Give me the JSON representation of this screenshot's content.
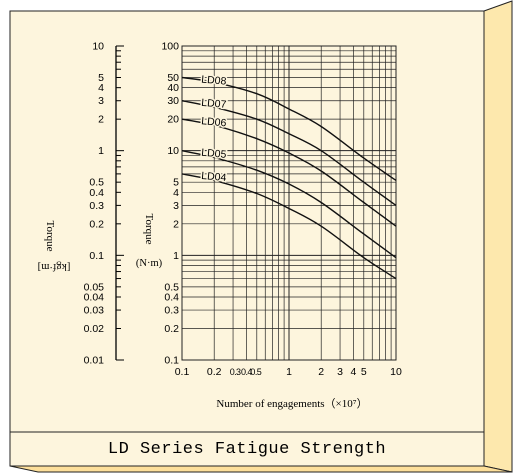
{
  "caption": "LD Series Fatigue Strength",
  "colors": {
    "panel_face": "#fdf5dd",
    "panel_side": "#fde8ad",
    "panel_bottom": "#fddf9a",
    "border": "#222222",
    "curve": "#111111",
    "grid": "#222222"
  },
  "chart_data": {
    "type": "line",
    "xscale": "log",
    "yscale": "log",
    "xlabel": "Number of engagements（×10⁷）",
    "ylabel": "Torque",
    "yunit": "(N·m)",
    "xlim": [
      0.1,
      10
    ],
    "ylim": [
      0.1,
      100
    ],
    "grid": true,
    "x_tick_labels": [
      {
        "value": 0.1,
        "label": "0.1"
      },
      {
        "value": 0.2,
        "label": "0.2"
      },
      {
        "value": 0.3,
        "label": "0.3"
      },
      {
        "value": 0.4,
        "label": "0.4"
      },
      {
        "value": 0.5,
        "label": "0.5"
      },
      {
        "value": 1,
        "label": "1"
      },
      {
        "value": 2,
        "label": "2"
      },
      {
        "value": 3,
        "label": "3"
      },
      {
        "value": 4,
        "label": "4"
      },
      {
        "value": 5,
        "label": "5"
      },
      {
        "value": 10,
        "label": "10"
      }
    ],
    "y_tick_labels": [
      {
        "value": 100,
        "label": "100"
      },
      {
        "value": 50,
        "label": "50"
      },
      {
        "value": 40,
        "label": "40"
      },
      {
        "value": 30,
        "label": "30"
      },
      {
        "value": 20,
        "label": "20"
      },
      {
        "value": 10,
        "label": "10"
      },
      {
        "value": 5,
        "label": "5"
      },
      {
        "value": 4,
        "label": "4"
      },
      {
        "value": 3,
        "label": "3"
      },
      {
        "value": 2,
        "label": "2"
      },
      {
        "value": 1,
        "label": "1"
      },
      {
        "value": 0.5,
        "label": "0.5"
      },
      {
        "value": 0.4,
        "label": "0.4"
      },
      {
        "value": 0.3,
        "label": "0.3"
      },
      {
        "value": 0.2,
        "label": "0.2"
      },
      {
        "value": 0.1,
        "label": "0.1"
      }
    ],
    "secondary_axis": {
      "label": "Torque",
      "unit": "[kgf·m]",
      "lim": [
        0.01,
        10
      ],
      "tick_labels": [
        {
          "value": 10,
          "label": "10"
        },
        {
          "value": 5,
          "label": "5"
        },
        {
          "value": 4,
          "label": "4"
        },
        {
          "value": 3,
          "label": "3"
        },
        {
          "value": 2,
          "label": "2"
        },
        {
          "value": 1,
          "label": "1"
        },
        {
          "value": 0.5,
          "label": "0.5"
        },
        {
          "value": 0.4,
          "label": "0.4"
        },
        {
          "value": 0.3,
          "label": "0.3"
        },
        {
          "value": 0.2,
          "label": "0.2"
        },
        {
          "value": 0.1,
          "label": "0.1"
        },
        {
          "value": 0.05,
          "label": "0.05"
        },
        {
          "value": 0.04,
          "label": "0.04"
        },
        {
          "value": 0.03,
          "label": "0.03"
        },
        {
          "value": 0.02,
          "label": "0.02"
        },
        {
          "value": 0.01,
          "label": "0.01"
        }
      ]
    },
    "series": [
      {
        "name": "LD08",
        "points": [
          [
            0.1,
            50
          ],
          [
            0.2,
            45
          ],
          [
            0.5,
            35
          ],
          [
            1,
            25
          ],
          [
            2,
            17
          ],
          [
            5,
            8.5
          ],
          [
            10,
            5.2
          ]
        ]
      },
      {
        "name": "LD07",
        "points": [
          [
            0.1,
            30
          ],
          [
            0.2,
            26
          ],
          [
            0.5,
            20
          ],
          [
            1,
            14.5
          ],
          [
            2,
            10
          ],
          [
            5,
            5
          ],
          [
            10,
            3
          ]
        ]
      },
      {
        "name": "LD06",
        "points": [
          [
            0.1,
            20
          ],
          [
            0.2,
            17.5
          ],
          [
            0.5,
            13
          ],
          [
            1,
            9.5
          ],
          [
            2,
            6.4
          ],
          [
            5,
            3.2
          ],
          [
            10,
            1.9
          ]
        ]
      },
      {
        "name": "LD05",
        "points": [
          [
            0.1,
            10
          ],
          [
            0.2,
            8.6
          ],
          [
            0.5,
            6.5
          ],
          [
            1,
            4.8
          ],
          [
            2,
            3.2
          ],
          [
            5,
            1.6
          ],
          [
            10,
            0.95
          ]
        ]
      },
      {
        "name": "LD04",
        "points": [
          [
            0.1,
            6
          ],
          [
            0.2,
            5.2
          ],
          [
            0.5,
            3.9
          ],
          [
            1,
            2.8
          ],
          [
            2,
            1.9
          ],
          [
            5,
            0.95
          ],
          [
            10,
            0.6
          ]
        ]
      }
    ]
  }
}
